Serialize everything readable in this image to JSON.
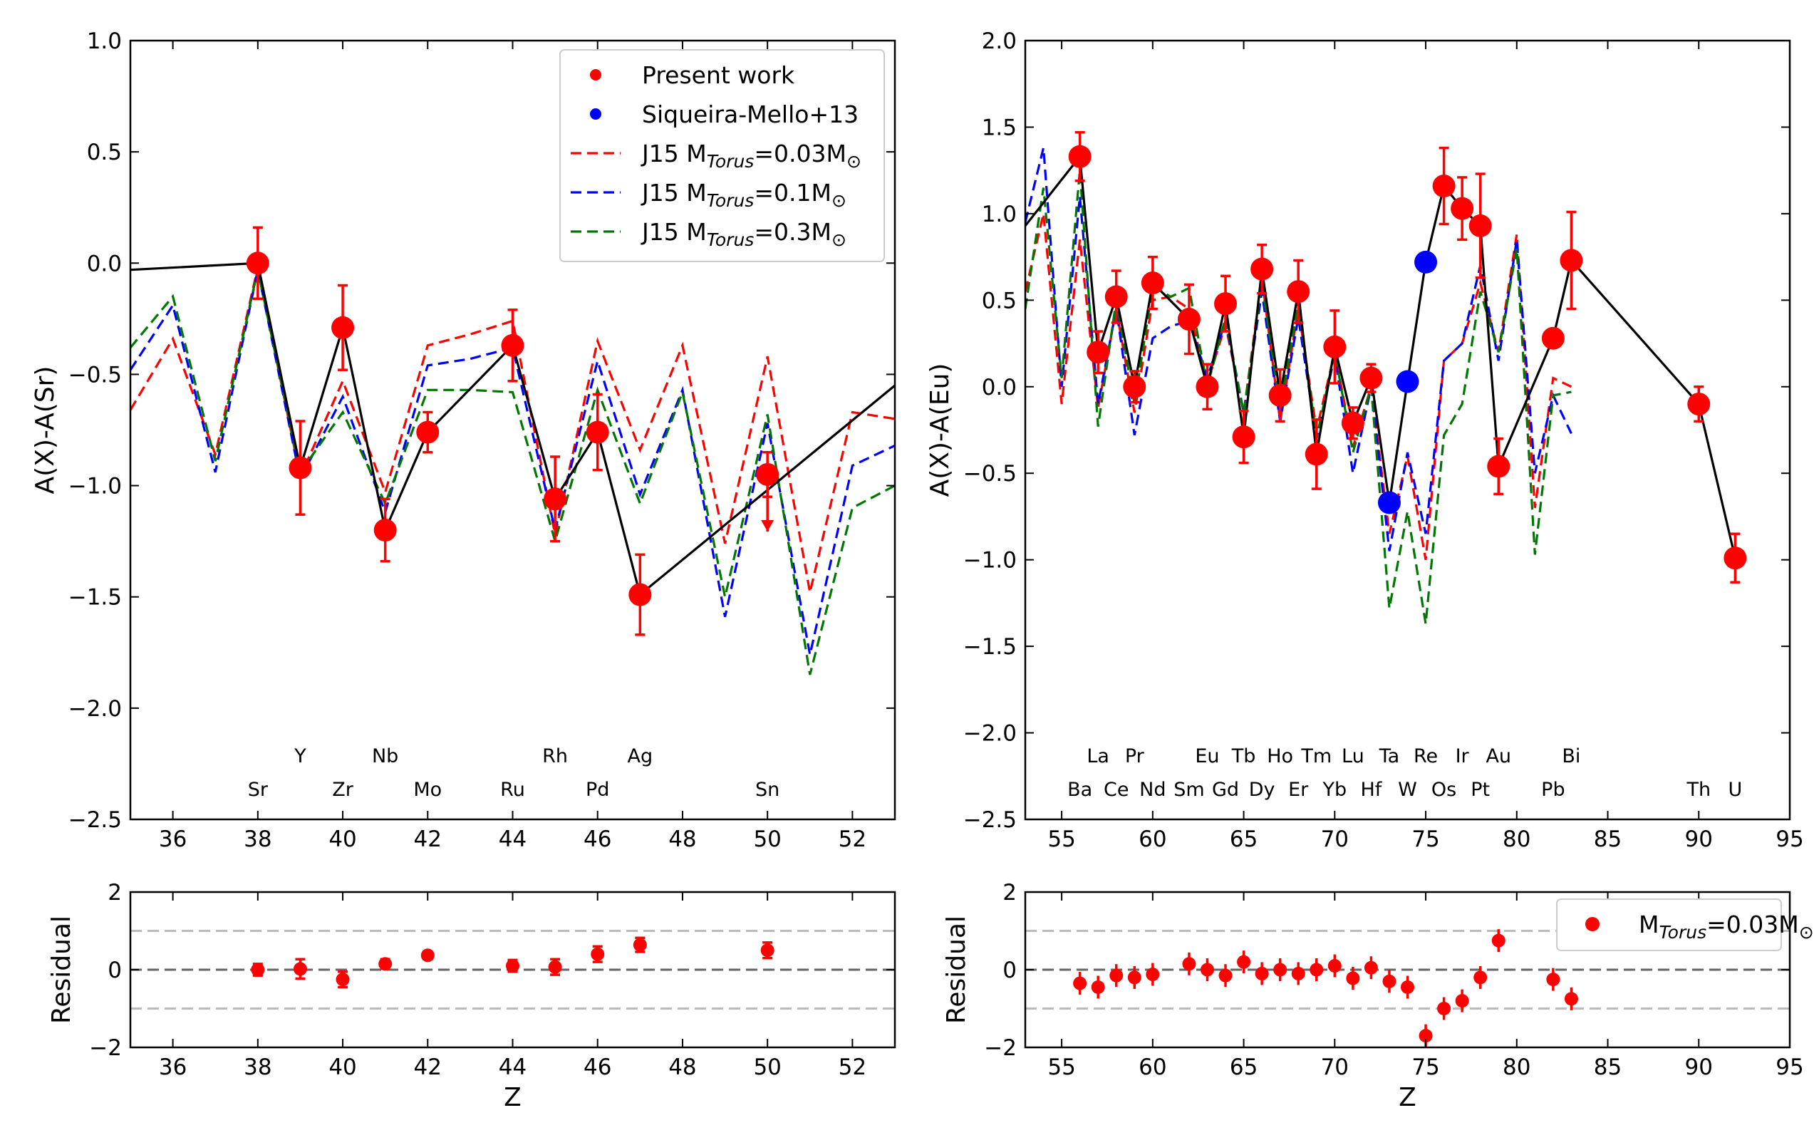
{
  "colors": {
    "present": "#ff0000",
    "siqueira": "#0000ff",
    "model_003": "#ff0000",
    "model_01": "#0000ff",
    "model_03": "#007700",
    "connector": "#000000",
    "residual_zero": "#666666",
    "residual_band": "#bbbbbb"
  },
  "chart_data": [
    {
      "id": "left_main",
      "type": "scatter",
      "xlabel": "",
      "ylabel": "A(X)-A(Sr)",
      "xlim": [
        35,
        53
      ],
      "ylim": [
        -2.5,
        1.0
      ],
      "xticks": [
        36,
        38,
        40,
        42,
        44,
        46,
        48,
        50,
        52
      ],
      "yticks": [
        -2.5,
        -2.0,
        -1.5,
        -1.0,
        -0.5,
        0.0,
        0.5,
        1.0
      ],
      "ytick_labels": [
        "−2.5",
        "−2.0",
        "−1.5",
        "−1.0",
        "−0.5",
        "0.0",
        "0.5",
        "1.0"
      ],
      "legend": {
        "position": "top-right",
        "entries": [
          {
            "label": "Present work",
            "style": "dot",
            "color": "#ff0000"
          },
          {
            "label": "Siqueira-Mello+13",
            "style": "dot",
            "color": "#0000ff"
          },
          {
            "label": "J15 M",
            "sub": "Torus",
            "suffix": "=0.03M",
            "sun": "⊙",
            "style": "dash",
            "color": "#ff0000"
          },
          {
            "label": "J15 M",
            "sub": "Torus",
            "suffix": "=0.1M",
            "sun": "⊙",
            "style": "dash",
            "color": "#0000ff"
          },
          {
            "label": "J15 M",
            "sub": "Torus",
            "suffix": "=0.3M",
            "sun": "⊙",
            "style": "dash",
            "color": "#007700"
          }
        ]
      },
      "element_labels": [
        {
          "z": 38,
          "label": "Sr",
          "row": 2
        },
        {
          "z": 39,
          "label": "Y",
          "row": 1
        },
        {
          "z": 40,
          "label": "Zr",
          "row": 2
        },
        {
          "z": 41,
          "label": "Nb",
          "row": 1
        },
        {
          "z": 42,
          "label": "Mo",
          "row": 2
        },
        {
          "z": 44,
          "label": "Ru",
          "row": 2
        },
        {
          "z": 45,
          "label": "Rh",
          "row": 1
        },
        {
          "z": 46,
          "label": "Pd",
          "row": 2
        },
        {
          "z": 47,
          "label": "Ag",
          "row": 1
        },
        {
          "z": 50,
          "label": "Sn",
          "row": 2
        }
      ],
      "connector_line": {
        "x": [
          35,
          38,
          39,
          40,
          41,
          42,
          44,
          45,
          46,
          47,
          53
        ],
        "y": [
          -0.03,
          0.0,
          -0.92,
          -0.29,
          -1.2,
          -0.76,
          -0.37,
          -1.06,
          -0.76,
          -1.49,
          -0.55
        ]
      },
      "series": [
        {
          "name": "J15 MTorus=0.03Msun",
          "style": "dash",
          "color": "#ff0000",
          "x": [
            35,
            36,
            37,
            38,
            39,
            40,
            41,
            42,
            43,
            44,
            45,
            46,
            47,
            48,
            49,
            50,
            51,
            52,
            53
          ],
          "y": [
            -0.66,
            -0.34,
            -0.86,
            -0.02,
            -0.96,
            -0.53,
            -1.03,
            -0.37,
            -0.32,
            -0.26,
            -1.22,
            -0.35,
            -0.84,
            -0.37,
            -1.26,
            -0.42,
            -1.48,
            -0.67,
            -0.7
          ]
        },
        {
          "name": "J15 MTorus=0.1Msun",
          "style": "dash",
          "color": "#0000ff",
          "x": [
            35,
            36,
            37,
            38,
            39,
            40,
            41,
            42,
            43,
            44,
            45,
            46,
            47,
            48,
            49,
            50,
            51,
            52,
            53
          ],
          "y": [
            -0.48,
            -0.19,
            -0.94,
            -0.03,
            -0.97,
            -0.6,
            -1.12,
            -0.46,
            -0.43,
            -0.38,
            -1.2,
            -0.44,
            -1.04,
            -0.57,
            -1.59,
            -0.72,
            -1.76,
            -0.91,
            -0.82
          ]
        },
        {
          "name": "J15 MTorus=0.3Msun",
          "style": "dash",
          "color": "#007700",
          "x": [
            35,
            36,
            37,
            38,
            39,
            40,
            41,
            42,
            43,
            44,
            45,
            46,
            47,
            48,
            49,
            50,
            51,
            52,
            53
          ],
          "y": [
            -0.38,
            -0.15,
            -0.89,
            -0.03,
            -0.94,
            -0.67,
            -1.08,
            -0.57,
            -0.57,
            -0.58,
            -1.25,
            -0.57,
            -1.08,
            -0.58,
            -1.5,
            -0.68,
            -1.85,
            -1.1,
            -1.0
          ]
        },
        {
          "name": "Present work",
          "style": "errorbar",
          "color": "#ff0000",
          "x": [
            38,
            39,
            40,
            41,
            42,
            44,
            45,
            46,
            47,
            50
          ],
          "y": [
            0.0,
            -0.92,
            -0.29,
            -1.2,
            -0.76,
            -0.37,
            -1.06,
            -0.76,
            -1.49,
            -0.95
          ],
          "yerr": [
            0.16,
            0.21,
            0.19,
            0.14,
            0.09,
            0.16,
            0.19,
            0.17,
            0.18,
            0.1
          ],
          "upper_limit": [
            false,
            false,
            false,
            false,
            false,
            false,
            false,
            false,
            false,
            true
          ]
        }
      ]
    },
    {
      "id": "right_main",
      "type": "scatter",
      "xlabel": "",
      "ylabel": "A(X)-A(Eu)",
      "xlim": [
        53,
        95
      ],
      "ylim": [
        -2.5,
        2.0
      ],
      "xticks": [
        55,
        60,
        65,
        70,
        75,
        80,
        85,
        90,
        95
      ],
      "yticks": [
        -2.5,
        -2.0,
        -1.5,
        -1.0,
        -0.5,
        0.0,
        0.5,
        1.0,
        1.5,
        2.0
      ],
      "ytick_labels": [
        "−2.5",
        "−2.0",
        "−1.5",
        "−1.0",
        "−0.5",
        "0.0",
        "0.5",
        "1.0",
        "1.5",
        "2.0"
      ],
      "element_labels": [
        {
          "z": 56,
          "label": "Ba",
          "row": 2
        },
        {
          "z": 57,
          "label": "La",
          "row": 1
        },
        {
          "z": 58,
          "label": "Ce",
          "row": 2
        },
        {
          "z": 59,
          "label": "Pr",
          "row": 1
        },
        {
          "z": 60,
          "label": "Nd",
          "row": 2
        },
        {
          "z": 62,
          "label": "Sm",
          "row": 2
        },
        {
          "z": 63,
          "label": "Eu",
          "row": 1
        },
        {
          "z": 64,
          "label": "Gd",
          "row": 2
        },
        {
          "z": 65,
          "label": "Tb",
          "row": 1
        },
        {
          "z": 66,
          "label": "Dy",
          "row": 2
        },
        {
          "z": 67,
          "label": "Ho",
          "row": 1
        },
        {
          "z": 68,
          "label": "Er",
          "row": 2
        },
        {
          "z": 69,
          "label": "Tm",
          "row": 1
        },
        {
          "z": 70,
          "label": "Yb",
          "row": 2
        },
        {
          "z": 71,
          "label": "Lu",
          "row": 1
        },
        {
          "z": 72,
          "label": "Hf",
          "row": 2
        },
        {
          "z": 73,
          "label": "Ta",
          "row": 1
        },
        {
          "z": 74,
          "label": "W",
          "row": 2
        },
        {
          "z": 75,
          "label": "Re",
          "row": 1
        },
        {
          "z": 76,
          "label": "Os",
          "row": 2
        },
        {
          "z": 77,
          "label": "Ir",
          "row": 1
        },
        {
          "z": 78,
          "label": "Pt",
          "row": 2
        },
        {
          "z": 79,
          "label": "Au",
          "row": 1
        },
        {
          "z": 82,
          "label": "Pb",
          "row": 2
        },
        {
          "z": 83,
          "label": "Bi",
          "row": 1
        },
        {
          "z": 90,
          "label": "Th",
          "row": 2
        },
        {
          "z": 92,
          "label": "U",
          "row": 2
        }
      ],
      "connector_line": {
        "x": [
          53,
          56,
          57,
          58,
          59,
          60,
          62,
          63,
          64,
          65,
          66,
          67,
          68,
          69,
          70,
          71,
          72,
          73,
          74,
          75,
          76,
          77,
          78,
          79,
          82,
          83,
          90,
          92
        ],
        "y": [
          0.93,
          1.33,
          0.2,
          0.52,
          0.0,
          0.6,
          0.39,
          0.0,
          0.48,
          -0.29,
          0.68,
          -0.05,
          0.55,
          -0.39,
          0.23,
          -0.21,
          0.05,
          -0.67,
          0.03,
          0.72,
          1.16,
          1.03,
          0.93,
          -0.46,
          0.28,
          0.73,
          -0.1,
          -0.99
        ]
      },
      "series": [
        {
          "name": "J15 MTorus=0.03Msun",
          "style": "dash",
          "color": "#ff0000",
          "x": [
            53,
            54,
            55,
            56,
            57,
            58,
            59,
            60,
            61,
            62,
            63,
            64,
            65,
            66,
            67,
            68,
            69,
            70,
            71,
            72,
            73,
            74,
            75,
            76,
            77,
            78,
            79,
            80,
            81,
            82,
            83
          ],
          "y": [
            0.55,
            1.0,
            -0.1,
            0.85,
            -0.12,
            0.45,
            -0.15,
            0.5,
            0.52,
            0.45,
            0.02,
            0.36,
            -0.15,
            0.63,
            -0.2,
            0.45,
            -0.25,
            0.2,
            -0.35,
            0.0,
            -0.85,
            -0.4,
            -1.0,
            0.15,
            0.25,
            0.6,
            0.2,
            0.88,
            -0.7,
            0.05,
            0.0
          ]
        },
        {
          "name": "J15 MTorus=0.1Msun",
          "style": "dash",
          "color": "#0000ff",
          "x": [
            53,
            54,
            55,
            56,
            57,
            58,
            59,
            60,
            61,
            62,
            63,
            64,
            65,
            66,
            67,
            68,
            69,
            70,
            71,
            72,
            73,
            74,
            75,
            76,
            77,
            78,
            79,
            80,
            81,
            82,
            83
          ],
          "y": [
            0.95,
            1.38,
            0.0,
            1.1,
            -0.1,
            0.45,
            -0.28,
            0.28,
            0.35,
            0.38,
            0.05,
            0.38,
            -0.15,
            0.55,
            -0.2,
            0.4,
            -0.3,
            0.18,
            -0.5,
            0.0,
            -0.95,
            -0.38,
            -0.85,
            0.15,
            0.25,
            0.7,
            0.15,
            0.85,
            -0.5,
            -0.05,
            -0.27
          ]
        },
        {
          "name": "J15 MTorus=0.3Msun",
          "style": "dash",
          "color": "#007700",
          "x": [
            53,
            54,
            55,
            56,
            57,
            58,
            59,
            60,
            61,
            62,
            63,
            64,
            65,
            66,
            67,
            68,
            69,
            70,
            71,
            72,
            73,
            74,
            75,
            76,
            77,
            78,
            79,
            80,
            81,
            82,
            83
          ],
          "y": [
            0.45,
            1.15,
            0.05,
            1.25,
            -0.23,
            0.5,
            -0.1,
            0.58,
            0.52,
            0.57,
            0.0,
            0.4,
            -0.15,
            0.6,
            -0.12,
            0.48,
            -0.3,
            0.2,
            -0.38,
            0.0,
            -1.28,
            -0.72,
            -1.37,
            -0.28,
            -0.1,
            0.55,
            0.2,
            0.8,
            -0.97,
            -0.05,
            -0.03
          ]
        },
        {
          "name": "Present work",
          "style": "errorbar",
          "color": "#ff0000",
          "x": [
            56,
            57,
            58,
            59,
            60,
            62,
            63,
            64,
            65,
            66,
            67,
            68,
            69,
            70,
            71,
            72,
            76,
            77,
            78,
            79,
            82,
            83,
            90,
            92
          ],
          "y": [
            1.33,
            0.2,
            0.52,
            0.0,
            0.6,
            0.39,
            0.0,
            0.48,
            -0.29,
            0.68,
            -0.05,
            0.55,
            -0.39,
            0.23,
            -0.21,
            0.05,
            1.16,
            1.03,
            0.93,
            -0.46,
            0.28,
            0.73,
            -0.1,
            -0.99
          ],
          "yerr": [
            0.14,
            0.12,
            0.15,
            0.09,
            0.15,
            0.2,
            0.13,
            0.16,
            0.15,
            0.14,
            0.15,
            0.18,
            0.2,
            0.21,
            0.09,
            0.08,
            0.22,
            0.18,
            0.3,
            0.16,
            0.04,
            0.28,
            0.1,
            0.14
          ]
        },
        {
          "name": "Siqueira-Mello+13",
          "style": "dot",
          "color": "#0000ff",
          "x": [
            73,
            74,
            75
          ],
          "y": [
            -0.67,
            0.03,
            0.72
          ]
        }
      ]
    },
    {
      "id": "left_residual",
      "type": "scatter",
      "xlabel": "Z",
      "ylabel": "Residual",
      "xlim": [
        35,
        53
      ],
      "ylim": [
        -2,
        2
      ],
      "xticks": [
        36,
        38,
        40,
        42,
        44,
        46,
        48,
        50,
        52
      ],
      "yticks": [
        -2,
        0,
        2
      ],
      "ytick_labels": [
        "−2",
        "0",
        "2"
      ],
      "reference_lines": [
        0,
        1,
        -1
      ],
      "series": [
        {
          "name": "Residual",
          "style": "errorbar",
          "color": "#ff0000",
          "x": [
            38,
            39,
            40,
            41,
            42,
            44,
            45,
            46,
            47,
            50
          ],
          "y": [
            0.0,
            0.02,
            -0.25,
            0.15,
            0.37,
            0.1,
            0.07,
            0.4,
            0.64,
            0.5
          ],
          "yerr": [
            0.15,
            0.25,
            0.2,
            0.12,
            0.1,
            0.15,
            0.2,
            0.2,
            0.18,
            0.2
          ]
        }
      ]
    },
    {
      "id": "right_residual",
      "type": "scatter",
      "xlabel": "Z",
      "ylabel": "Residual",
      "xlim": [
        53,
        95
      ],
      "ylim": [
        -2,
        2
      ],
      "xticks": [
        55,
        60,
        65,
        70,
        75,
        80,
        85,
        90,
        95
      ],
      "yticks": [
        -2,
        0,
        2
      ],
      "ytick_labels": [
        "−2",
        "0",
        "2"
      ],
      "reference_lines": [
        0,
        1,
        -1
      ],
      "legend": {
        "position": "top-right",
        "entries": [
          {
            "label": "M",
            "sub": "Torus",
            "suffix": "=0.03M",
            "sun": "⊙",
            "style": "dot",
            "color": "#ff0000"
          }
        ]
      },
      "series": [
        {
          "name": "MTorus=0.03Msun",
          "style": "errorbar",
          "color": "#ff0000",
          "x": [
            56,
            57,
            58,
            59,
            60,
            62,
            63,
            64,
            65,
            66,
            67,
            68,
            69,
            70,
            71,
            72,
            73,
            74,
            75,
            76,
            77,
            78,
            79,
            82,
            83
          ],
          "y": [
            -0.35,
            -0.45,
            -0.15,
            -0.2,
            -0.12,
            0.15,
            0.0,
            -0.15,
            0.2,
            -0.1,
            0.0,
            -0.1,
            0.0,
            0.1,
            -0.22,
            0.05,
            -0.3,
            -0.45,
            -1.7,
            -1.0,
            -0.8,
            -0.2,
            0.75,
            -0.25,
            -0.75
          ]
        }
      ]
    }
  ]
}
